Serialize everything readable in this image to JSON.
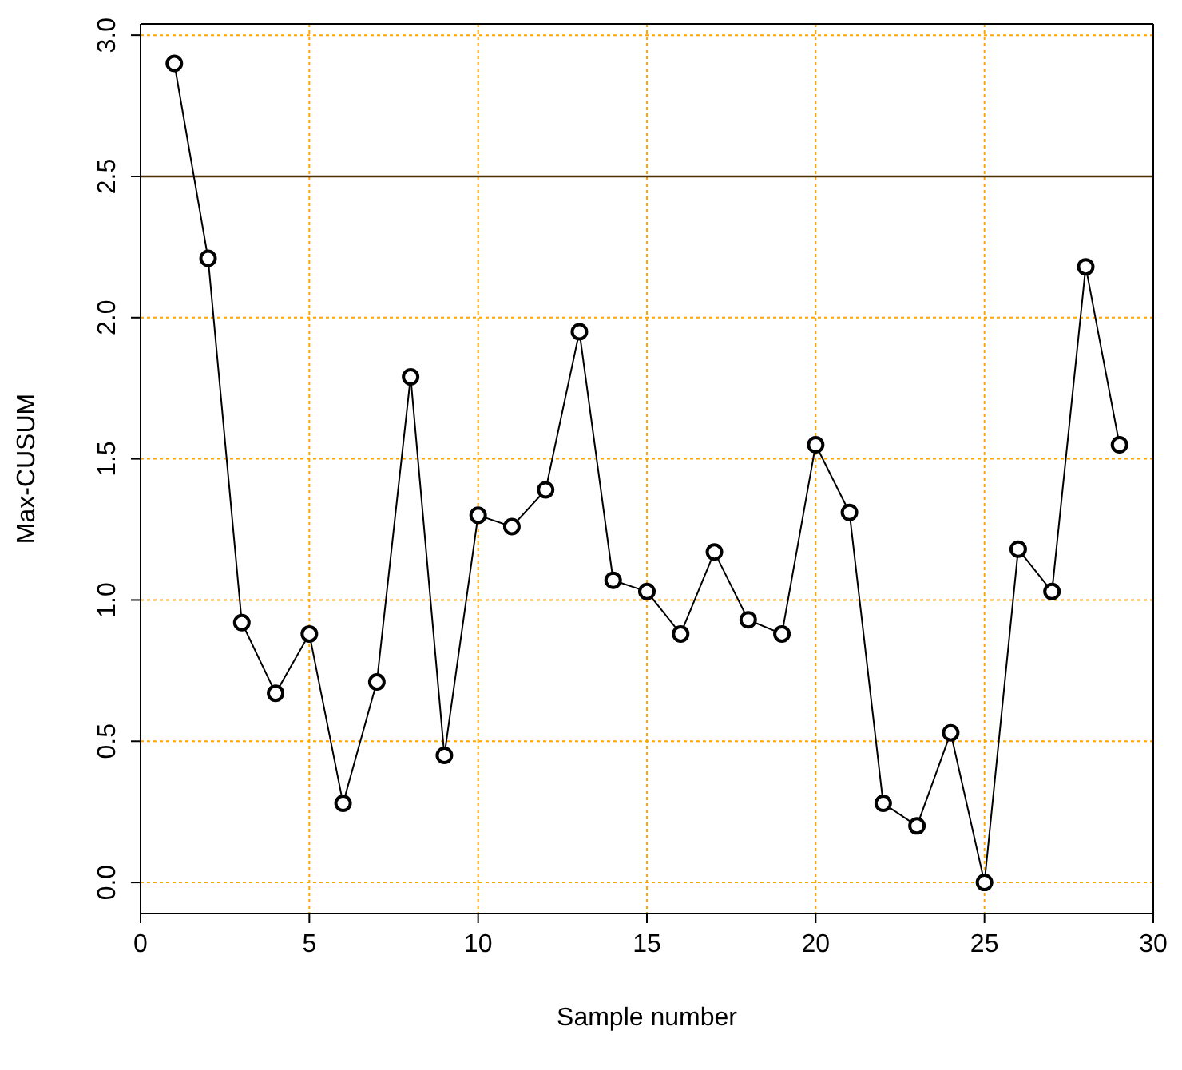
{
  "chart_data": {
    "type": "line",
    "xlabel": "Sample number",
    "ylabel": "Max-CUSUM",
    "x": [
      1,
      2,
      3,
      4,
      5,
      6,
      7,
      8,
      9,
      10,
      11,
      12,
      13,
      14,
      15,
      16,
      17,
      18,
      19,
      20,
      21,
      22,
      23,
      24,
      25,
      26,
      27,
      28,
      29
    ],
    "series": [
      {
        "color": "#000000",
        "values": [
          2.9,
          2.21,
          0.92,
          0.67,
          0.88,
          0.28,
          0.71,
          1.79,
          0.45,
          1.3,
          1.26,
          1.39,
          1.95,
          1.07,
          1.03,
          0.88,
          1.17,
          0.93,
          0.88,
          1.55,
          1.31,
          0.28,
          0.2,
          0.53,
          0.0,
          1.18,
          1.03,
          2.18,
          1.55
        ]
      }
    ],
    "xlim": [
      0,
      30
    ],
    "xticks": [
      0,
      5,
      10,
      15,
      20,
      25,
      30
    ],
    "ylim": [
      -0.11,
      3.04
    ],
    "yticks": [
      {
        "value": 0,
        "label": "0.0"
      },
      {
        "value": 0.5,
        "label": "0.5"
      },
      {
        "value": 1,
        "label": "1.0"
      },
      {
        "value": 1.5,
        "label": "1.5"
      },
      {
        "value": 2,
        "label": "2.0"
      },
      {
        "value": 2.5,
        "label": "2.5"
      },
      {
        "value": 3,
        "label": "3.0"
      }
    ],
    "ref_lines": [
      {
        "axis": "y",
        "value": 2.5,
        "color": "#4d3300"
      }
    ],
    "grid": true,
    "marker": "circle",
    "line_style": "solid",
    "legend": false
  }
}
